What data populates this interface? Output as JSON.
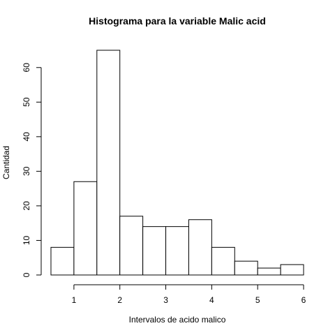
{
  "chart_data": {
    "type": "bar",
    "title": "Histograma para la variable Malic acid",
    "xlabel": "Intervalos de acido malico",
    "ylabel": "Cantidad",
    "bins": [
      {
        "from": 0.5,
        "to": 1.0,
        "count": 8
      },
      {
        "from": 1.0,
        "to": 1.5,
        "count": 27
      },
      {
        "from": 1.5,
        "to": 2.0,
        "count": 65
      },
      {
        "from": 2.0,
        "to": 2.5,
        "count": 17
      },
      {
        "from": 2.5,
        "to": 3.0,
        "count": 14
      },
      {
        "from": 3.0,
        "to": 3.5,
        "count": 14
      },
      {
        "from": 3.5,
        "to": 4.0,
        "count": 16
      },
      {
        "from": 4.0,
        "to": 4.5,
        "count": 8
      },
      {
        "from": 4.5,
        "to": 5.0,
        "count": 4
      },
      {
        "from": 5.0,
        "to": 5.5,
        "count": 2
      },
      {
        "from": 5.5,
        "to": 6.0,
        "count": 3
      }
    ],
    "xlim": [
      0.5,
      6.0
    ],
    "ylim": [
      0,
      65
    ],
    "xticks": [
      "1",
      "2",
      "3",
      "4",
      "5",
      "6"
    ],
    "yticks": [
      "0",
      "10",
      "20",
      "30",
      "40",
      "50",
      "60"
    ],
    "grid": false
  }
}
